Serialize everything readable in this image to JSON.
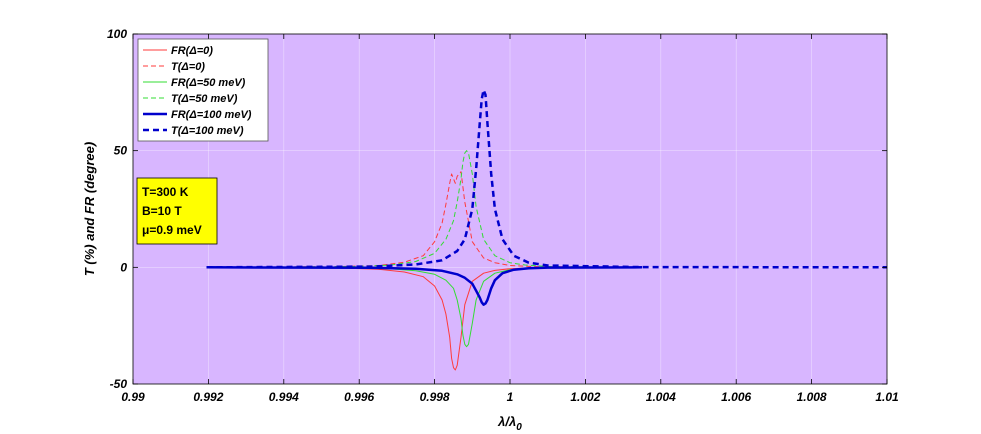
{
  "chart_data": {
    "type": "line",
    "xlabel": "λ/λ",
    "xlabel_sub": "0",
    "ylabel": "T (%) and FR (degree)",
    "xlim": [
      0.99,
      1.01
    ],
    "ylim": [
      -50,
      100
    ],
    "xticks": [
      "0.99",
      "0.992",
      "0.994",
      "0.996",
      "0.998",
      "1",
      "1.002",
      "1.004",
      "1.006",
      "1.008",
      "1.01"
    ],
    "yticks": [
      "-50",
      "0",
      "50",
      "100"
    ],
    "grid": true,
    "background": "#d8b6ff",
    "legend_position": "top-left",
    "annotation": [
      "T=300 K",
      "B=10 T",
      "μ=0.9 meV"
    ],
    "annotation_box_color": "#ffff00",
    "series": [
      {
        "name": "FR(Δ=0)",
        "color": "#ff3b3b",
        "style": "solid",
        "width": 1,
        "x": [
          0.99195,
          0.9955,
          0.9965,
          0.9972,
          0.9977,
          0.998,
          0.9982,
          0.9983,
          0.9984,
          0.99845,
          0.9985,
          0.99855,
          0.9986,
          0.9987,
          0.9988,
          0.999,
          0.9993,
          0.9996,
          1.0,
          1.0006,
          1.0035
        ],
        "y": [
          0,
          -0.3,
          -0.8,
          -2,
          -4,
          -8,
          -14,
          -20,
          -30,
          -39,
          -43,
          -44,
          -42,
          -30,
          -16,
          -6,
          -2.5,
          -1.3,
          -0.6,
          -0.2,
          0
        ]
      },
      {
        "name": "T(Δ=0)",
        "color": "#ff3b3b",
        "style": "dashed",
        "width": 1,
        "x": [
          0.99195,
          0.9955,
          0.9965,
          0.9972,
          0.9977,
          0.998,
          0.9982,
          0.9983,
          0.9984,
          0.99845,
          0.9985,
          0.99855,
          0.9986,
          0.9987,
          0.9988,
          0.999,
          0.9993,
          0.9996,
          1.0,
          1.0006,
          1.0035
        ],
        "y": [
          0,
          0.3,
          0.8,
          2.2,
          5,
          11,
          19,
          27,
          36,
          40,
          38,
          36,
          39,
          41,
          28,
          11,
          4,
          2,
          0.8,
          0.3,
          0
        ]
      },
      {
        "name": "FR(Δ=50 meV)",
        "color": "#33dd33",
        "style": "solid",
        "width": 1,
        "x": [
          0.99195,
          0.9958,
          0.9968,
          0.9975,
          0.998,
          0.9983,
          0.9985,
          0.9986,
          0.9987,
          0.99875,
          0.9988,
          0.99885,
          0.9989,
          0.999,
          0.9991,
          0.9993,
          0.9996,
          1.0,
          1.0004,
          1.001,
          1.0035
        ],
        "y": [
          0,
          -0.2,
          -0.6,
          -1.5,
          -3,
          -5.5,
          -9,
          -14,
          -22,
          -29,
          -33,
          -34,
          -33,
          -24,
          -14,
          -6,
          -2.5,
          -1,
          -0.5,
          -0.2,
          0
        ]
      },
      {
        "name": "T(Δ=50 meV)",
        "color": "#33dd33",
        "style": "dashed",
        "width": 1,
        "x": [
          0.99195,
          0.9958,
          0.9968,
          0.9975,
          0.998,
          0.9983,
          0.9985,
          0.9986,
          0.9987,
          0.99875,
          0.9988,
          0.99885,
          0.9989,
          0.999,
          0.9991,
          0.9993,
          0.9996,
          1.0,
          1.0004,
          1.001,
          1.0035
        ],
        "y": [
          0,
          0.3,
          0.9,
          2.5,
          6,
          12,
          20,
          28,
          38,
          45,
          49,
          50,
          49,
          40,
          26,
          12,
          5,
          2,
          1,
          0.4,
          0
        ]
      },
      {
        "name": "FR(Δ=100 meV)",
        "color": "#0000cc",
        "style": "solid",
        "width": 2.5,
        "x": [
          0.99195,
          0.9963,
          0.9975,
          0.9982,
          0.9986,
          0.9988,
          0.999,
          0.9991,
          0.9992,
          0.99925,
          0.9993,
          0.99935,
          0.9994,
          0.9995,
          0.9996,
          0.9998,
          1.0001,
          1.0005,
          1.001,
          1.0035
        ],
        "y": [
          0,
          -0.2,
          -0.6,
          -1.5,
          -3,
          -4.5,
          -7,
          -10,
          -13,
          -15,
          -16,
          -15.5,
          -14,
          -9,
          -5.5,
          -2.5,
          -1,
          -0.4,
          -0.1,
          0
        ]
      },
      {
        "name": "T(Δ=100 meV)",
        "color": "#0000cc",
        "style": "dashed",
        "width": 2.5,
        "x": [
          0.99195,
          0.9963,
          0.9975,
          0.9982,
          0.9986,
          0.9988,
          0.999,
          0.9991,
          0.9992,
          0.99925,
          0.9993,
          0.99935,
          0.9994,
          0.9995,
          0.9996,
          0.9998,
          1.0001,
          1.0005,
          1.001,
          1.0035,
          1.01
        ],
        "y": [
          0,
          0.3,
          1.2,
          3,
          7,
          12,
          25,
          42,
          62,
          72,
          76,
          74,
          62,
          40,
          25,
          12,
          5,
          2,
          0.8,
          0.1,
          0
        ]
      }
    ]
  }
}
